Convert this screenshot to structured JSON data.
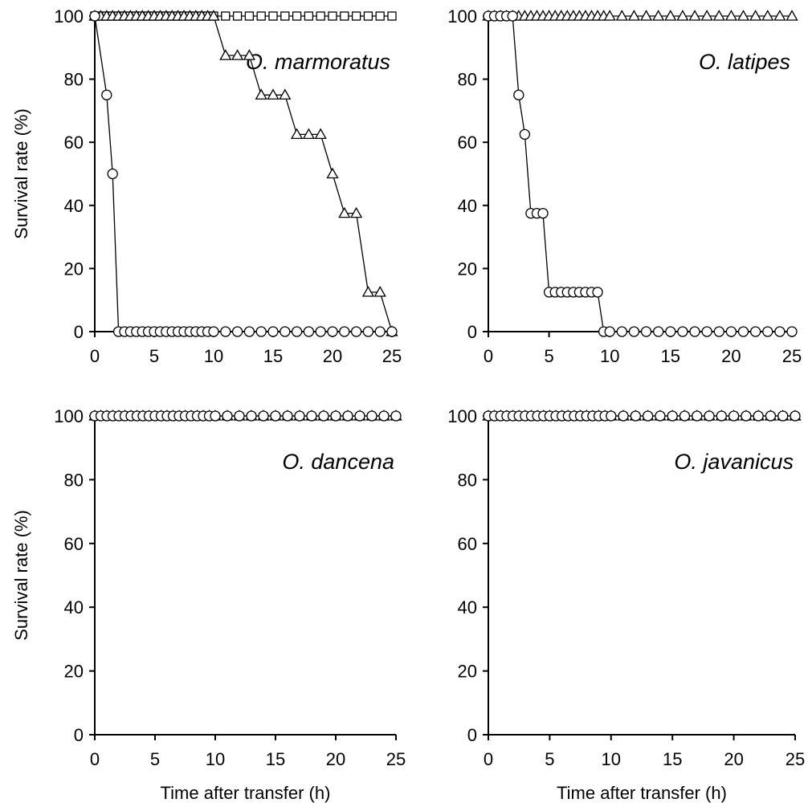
{
  "chart_data": [
    {
      "type": "line",
      "title": "O. marmoratus",
      "xlabel": "",
      "ylabel": "Survival rate (%)",
      "xlim": [
        0,
        25
      ],
      "ylim": [
        0,
        100
      ],
      "xticks": [
        0,
        5,
        10,
        15,
        20,
        25
      ],
      "yticks": [
        0,
        20,
        40,
        60,
        80,
        100
      ],
      "series": [
        {
          "marker": "circle",
          "x": [
            0,
            1,
            1.5,
            2,
            2.5,
            3,
            3.5,
            4,
            4.5,
            5,
            5.5,
            6,
            6.5,
            7,
            7.5,
            8,
            8.5,
            9,
            9.5,
            10,
            11,
            12,
            13,
            14,
            15,
            16,
            17,
            18,
            19,
            20,
            21,
            22,
            23,
            24,
            25
          ],
          "values": [
            100,
            75,
            50,
            0,
            0,
            0,
            0,
            0,
            0,
            0,
            0,
            0,
            0,
            0,
            0,
            0,
            0,
            0,
            0,
            0,
            0,
            0,
            0,
            0,
            0,
            0,
            0,
            0,
            0,
            0,
            0,
            0,
            0,
            0,
            0
          ]
        },
        {
          "marker": "triangle",
          "x": [
            0,
            0.5,
            1,
            1.5,
            2,
            2.5,
            3,
            3.5,
            4,
            4.5,
            5,
            5.5,
            6,
            6.5,
            7,
            7.5,
            8,
            8.5,
            9,
            9.5,
            10,
            11,
            12,
            13,
            14,
            15,
            16,
            17,
            18,
            19,
            20,
            21,
            22,
            23,
            24,
            25
          ],
          "values": [
            100,
            100,
            100,
            100,
            100,
            100,
            100,
            100,
            100,
            100,
            100,
            100,
            100,
            100,
            100,
            100,
            100,
            100,
            100,
            100,
            100,
            87.5,
            87.5,
            87.5,
            75,
            75,
            75,
            62.5,
            62.5,
            62.5,
            50,
            37.5,
            37.5,
            12.5,
            12.5,
            0
          ]
        },
        {
          "marker": "square",
          "x": [
            0,
            0.5,
            1,
            1.5,
            2,
            2.5,
            3,
            3.5,
            4,
            4.5,
            5,
            5.5,
            6,
            6.5,
            7,
            7.5,
            8,
            8.5,
            9,
            9.5,
            10,
            11,
            12,
            13,
            14,
            15,
            16,
            17,
            18,
            19,
            20,
            21,
            22,
            23,
            24,
            25
          ],
          "values": [
            100,
            100,
            100,
            100,
            100,
            100,
            100,
            100,
            100,
            100,
            100,
            100,
            100,
            100,
            100,
            100,
            100,
            100,
            100,
            100,
            100,
            100,
            100,
            100,
            100,
            100,
            100,
            100,
            100,
            100,
            100,
            100,
            100,
            100,
            100,
            100
          ]
        }
      ]
    },
    {
      "type": "line",
      "title": "O. latipes",
      "xlabel": "",
      "ylabel": "",
      "xlim": [
        0,
        25
      ],
      "ylim": [
        0,
        100
      ],
      "xticks": [
        0,
        5,
        10,
        15,
        20,
        25
      ],
      "yticks": [
        0,
        20,
        40,
        60,
        80,
        100
      ],
      "series": [
        {
          "marker": "circle",
          "x": [
            0,
            0.5,
            1,
            1.5,
            2,
            2.5,
            3,
            3.5,
            4,
            4.5,
            5,
            5.5,
            6,
            6.5,
            7,
            7.5,
            8,
            8.5,
            9,
            9.5,
            10,
            11,
            12,
            13,
            14,
            15,
            16,
            17,
            18,
            19,
            20,
            21,
            22,
            23,
            24,
            25
          ],
          "values": [
            100,
            100,
            100,
            100,
            100,
            75,
            62.5,
            37.5,
            37.5,
            37.5,
            12.5,
            12.5,
            12.5,
            12.5,
            12.5,
            12.5,
            12.5,
            12.5,
            12.5,
            0,
            0,
            0,
            0,
            0,
            0,
            0,
            0,
            0,
            0,
            0,
            0,
            0,
            0,
            0,
            0,
            0
          ]
        },
        {
          "marker": "triangle",
          "x": [
            0,
            0.5,
            1,
            1.5,
            2,
            2.5,
            3,
            3.5,
            4,
            4.5,
            5,
            5.5,
            6,
            6.5,
            7,
            7.5,
            8,
            8.5,
            9,
            9.5,
            10,
            11,
            12,
            13,
            14,
            15,
            16,
            17,
            18,
            19,
            20,
            21,
            22,
            23,
            24,
            25
          ],
          "values": [
            100,
            100,
            100,
            100,
            100,
            100,
            100,
            100,
            100,
            100,
            100,
            100,
            100,
            100,
            100,
            100,
            100,
            100,
            100,
            100,
            100,
            100,
            100,
            100,
            100,
            100,
            100,
            100,
            100,
            100,
            100,
            100,
            100,
            100,
            100,
            100
          ]
        }
      ]
    },
    {
      "type": "line",
      "title": "O. dancena",
      "xlabel": "Time after transfer (h)",
      "ylabel": "Survival rate (%)",
      "xlim": [
        0,
        25
      ],
      "ylim": [
        0,
        100
      ],
      "xticks": [
        0,
        5,
        10,
        15,
        20,
        25
      ],
      "yticks": [
        0,
        20,
        40,
        60,
        80,
        100
      ],
      "series": [
        {
          "marker": "circle",
          "x": [
            0,
            0.5,
            1,
            1.5,
            2,
            2.5,
            3,
            3.5,
            4,
            4.5,
            5,
            5.5,
            6,
            6.5,
            7,
            7.5,
            8,
            8.5,
            9,
            9.5,
            10,
            11,
            12,
            13,
            14,
            15,
            16,
            17,
            18,
            19,
            20,
            21,
            22,
            23,
            24,
            25
          ],
          "values": [
            100,
            100,
            100,
            100,
            100,
            100,
            100,
            100,
            100,
            100,
            100,
            100,
            100,
            100,
            100,
            100,
            100,
            100,
            100,
            100,
            100,
            100,
            100,
            100,
            100,
            100,
            100,
            100,
            100,
            100,
            100,
            100,
            100,
            100,
            100,
            100
          ]
        },
        {
          "marker": "triangle",
          "x": [
            0,
            0.5,
            1,
            1.5,
            2,
            2.5,
            3,
            3.5,
            4,
            4.5,
            5,
            5.5,
            6,
            6.5,
            7,
            7.5,
            8,
            8.5,
            9,
            9.5,
            10,
            11,
            12,
            13,
            14,
            15,
            16,
            17,
            18,
            19,
            20,
            21,
            22,
            23,
            24,
            25
          ],
          "values": [
            100,
            100,
            100,
            100,
            100,
            100,
            100,
            100,
            100,
            100,
            100,
            100,
            100,
            100,
            100,
            100,
            100,
            100,
            100,
            100,
            100,
            100,
            100,
            100,
            100,
            100,
            100,
            100,
            100,
            100,
            100,
            100,
            100,
            100,
            100,
            100
          ]
        }
      ]
    },
    {
      "type": "line",
      "title": "O. javanicus",
      "xlabel": "Time after transfer (h)",
      "ylabel": "",
      "xlim": [
        0,
        25
      ],
      "ylim": [
        0,
        100
      ],
      "xticks": [
        0,
        5,
        10,
        15,
        20,
        25
      ],
      "yticks": [
        0,
        20,
        40,
        60,
        80,
        100
      ],
      "series": [
        {
          "marker": "circle",
          "x": [
            0,
            0.5,
            1,
            1.5,
            2,
            2.5,
            3,
            3.5,
            4,
            4.5,
            5,
            5.5,
            6,
            6.5,
            7,
            7.5,
            8,
            8.5,
            9,
            9.5,
            10,
            11,
            12,
            13,
            14,
            15,
            16,
            17,
            18,
            19,
            20,
            21,
            22,
            23,
            24,
            25
          ],
          "values": [
            100,
            100,
            100,
            100,
            100,
            100,
            100,
            100,
            100,
            100,
            100,
            100,
            100,
            100,
            100,
            100,
            100,
            100,
            100,
            100,
            100,
            100,
            100,
            100,
            100,
            100,
            100,
            100,
            100,
            100,
            100,
            100,
            100,
            100,
            100,
            100
          ]
        },
        {
          "marker": "triangle",
          "x": [
            0,
            0.5,
            1,
            1.5,
            2,
            2.5,
            3,
            3.5,
            4,
            4.5,
            5,
            5.5,
            6,
            6.5,
            7,
            7.5,
            8,
            8.5,
            9,
            9.5,
            10,
            11,
            12,
            13,
            14,
            15,
            16,
            17,
            18,
            19,
            20,
            21,
            22,
            23,
            24,
            25
          ],
          "values": [
            100,
            100,
            100,
            100,
            100,
            100,
            100,
            100,
            100,
            100,
            100,
            100,
            100,
            100,
            100,
            100,
            100,
            100,
            100,
            100,
            100,
            100,
            100,
            100,
            100,
            100,
            100,
            100,
            100,
            100,
            100,
            100,
            100,
            100,
            100,
            100
          ]
        }
      ]
    }
  ]
}
